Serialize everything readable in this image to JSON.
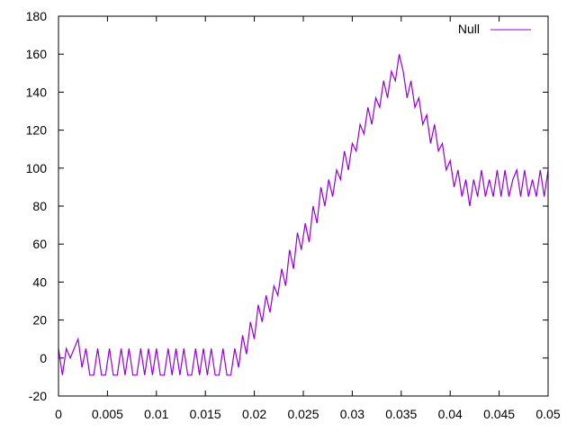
{
  "chart_data": {
    "type": "line",
    "title": "",
    "xlabel": "",
    "ylabel": "",
    "xlim": [
      0,
      0.05
    ],
    "ylim": [
      -20,
      180
    ],
    "x_ticks": [
      "0",
      "0.005",
      "0.01",
      "0.015",
      "0.02",
      "0.025",
      "0.03",
      "0.035",
      "0.04",
      "0.045",
      "0.05"
    ],
    "y_ticks": [
      "-20",
      "0",
      "20",
      "40",
      "60",
      "80",
      "100",
      "120",
      "140",
      "160",
      "180"
    ],
    "grid": false,
    "legend_position": "top-right",
    "x_step": 0.0004,
    "series": [
      {
        "name": "Null",
        "color": "#9400d3",
        "y": [
          5,
          -9,
          5,
          0,
          5,
          10,
          -5,
          5,
          -9,
          -9,
          5,
          -9,
          -9,
          5,
          -9,
          -9,
          5,
          -9,
          5,
          -9,
          -9,
          5,
          -9,
          5,
          -9,
          5,
          -9,
          -9,
          5,
          -9,
          5,
          -9,
          5,
          -9,
          -9,
          5,
          -9,
          5,
          -9,
          5,
          -9,
          -9,
          5,
          -9,
          -9,
          5,
          -5,
          12,
          2,
          19,
          10,
          28,
          19,
          33,
          24,
          38,
          33,
          47,
          38,
          57,
          47,
          66,
          57,
          71,
          61,
          80,
          71,
          90,
          80,
          94,
          85,
          99,
          94,
          109,
          99,
          113,
          109,
          123,
          118,
          132,
          123,
          137,
          132,
          146,
          137,
          151,
          146,
          160,
          151,
          137,
          146,
          132,
          137,
          123,
          128,
          113,
          123,
          109,
          113,
          99,
          104,
          90,
          99,
          85,
          94,
          80,
          94,
          85,
          99,
          85,
          94,
          85,
          99,
          85,
          99,
          85,
          94,
          99,
          85,
          99,
          85,
          94,
          85,
          99,
          85,
          99
        ]
      }
    ]
  }
}
